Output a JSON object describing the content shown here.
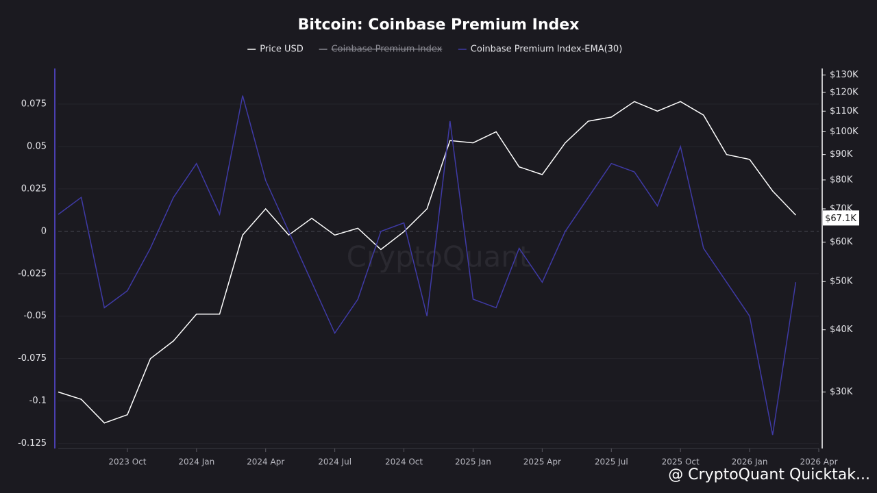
{
  "chart_data": {
    "type": "line",
    "title": "Bitcoin: Coinbase Premium Index",
    "watermark": "CryptoQuant",
    "footer": "@ CryptoQuant Quicktak...",
    "x": [
      "2023-07",
      "2023-08",
      "2023-09",
      "2023-10",
      "2023-11",
      "2023-12",
      "2024-01",
      "2024-02",
      "2024-03",
      "2024-04",
      "2024-05",
      "2024-06",
      "2024-07",
      "2024-08",
      "2024-09",
      "2024-10",
      "2024-11",
      "2024-12",
      "2025-01",
      "2025-02",
      "2025-03",
      "2025-04",
      "2025-05",
      "2025-06",
      "2025-07",
      "2025-08",
      "2025-09",
      "2025-10",
      "2025-11",
      "2025-12",
      "2026-01",
      "2026-02",
      "2026-03"
    ],
    "series": [
      {
        "name": "Price USD",
        "color": "#ffffff",
        "axis": "y2",
        "values": [
          30000,
          29000,
          26000,
          27000,
          35000,
          38000,
          43000,
          43000,
          62000,
          70000,
          62000,
          67000,
          62000,
          64000,
          58000,
          63000,
          70000,
          96000,
          95000,
          100000,
          85000,
          82000,
          95000,
          105000,
          107000,
          115000,
          110000,
          115000,
          108000,
          90000,
          88000,
          76000,
          68000
        ]
      },
      {
        "name": "Coinbase Premium Index",
        "color": "#8a8a92",
        "hidden": true
      },
      {
        "name": "Coinbase Premium Index-EMA(30)",
        "color": "#3f3aa6",
        "values": [
          0.01,
          0.02,
          -0.045,
          -0.035,
          -0.01,
          0.02,
          0.04,
          0.01,
          0.08,
          0.03,
          0.0,
          -0.03,
          -0.06,
          -0.04,
          0.0,
          0.005,
          -0.05,
          0.065,
          -0.04,
          -0.045,
          -0.01,
          -0.03,
          0.0,
          0.02,
          0.04,
          0.035,
          0.015,
          0.05,
          -0.01,
          -0.03,
          -0.05,
          -0.12,
          -0.03
        ]
      }
    ],
    "xlim": [
      "2023-07",
      "2026-04"
    ],
    "xticks": [
      {
        "value": "2023-10",
        "label": "2023 Oct"
      },
      {
        "value": "2024-01",
        "label": "2024 Jan"
      },
      {
        "value": "2024-04",
        "label": "2024 Apr"
      },
      {
        "value": "2024-07",
        "label": "2024 Jul"
      },
      {
        "value": "2024-10",
        "label": "2024 Oct"
      },
      {
        "value": "2025-01",
        "label": "2025 Jan"
      },
      {
        "value": "2025-04",
        "label": "2025 Apr"
      },
      {
        "value": "2025-07",
        "label": "2025 Jul"
      },
      {
        "value": "2025-10",
        "label": "2025 Oct"
      },
      {
        "value": "2026-01",
        "label": "2026 Jan"
      },
      {
        "value": "2026-04",
        "label": "2026 Apr"
      }
    ],
    "ylim": [
      -0.128,
      0.096
    ],
    "yticks": [
      0.075,
      0.05,
      0.025,
      0,
      -0.025,
      -0.05,
      -0.075,
      -0.1,
      -0.125
    ],
    "y2lim": [
      23100,
      134000
    ],
    "y2scale": "log",
    "y2ticks": [
      {
        "value": 30000,
        "label": "$30K"
      },
      {
        "value": 40000,
        "label": "$40K"
      },
      {
        "value": 50000,
        "label": "$50K"
      },
      {
        "value": 60000,
        "label": "$60K"
      },
      {
        "value": 70000,
        "label": "$70K"
      },
      {
        "value": 80000,
        "label": "$80K"
      },
      {
        "value": 90000,
        "label": "$90K"
      },
      {
        "value": 100000,
        "label": "$100K"
      },
      {
        "value": 110000,
        "label": "$110K"
      },
      {
        "value": 120000,
        "label": "$120K"
      },
      {
        "value": 130000,
        "label": "$130K"
      }
    ],
    "grid": true,
    "annotations": [
      {
        "text": "$67.1K",
        "value": 67100
      }
    ]
  }
}
